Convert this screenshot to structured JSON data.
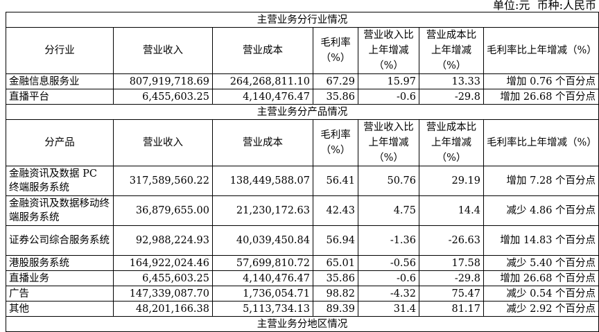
{
  "unit_note": "单位:元  币种:人民币",
  "industry": {
    "title": "主营业务分行业情况",
    "headers": [
      "分行业",
      "营业收入",
      "营业成本",
      "毛利率（%）",
      "营业收入比上年增减（%）",
      "营业成本比上年增减（%）",
      "毛利率比上年增减（%）"
    ],
    "rows": [
      [
        "金融信息服务业",
        "807,919,718.69",
        "264,268,811.10",
        "67.29",
        "15.97",
        "13.33",
        "增加 0.76 个百分点"
      ],
      [
        "直播平台",
        "6,455,603.25",
        "4,140,476.47",
        "35.86",
        "-0.6",
        "-29.8",
        "增加 26.68 个百分点"
      ]
    ]
  },
  "product": {
    "title": "主营业务分产品情况",
    "headers": [
      "分产品",
      "营业收入",
      "营业成本",
      "毛利率（%）",
      "营业收入比上年增减（%）",
      "营业成本比上年增减（%）",
      "毛利率比上年增减（%）"
    ],
    "rows": [
      [
        "金融资讯及数据 PC 终端服务系统",
        "317,589,560.22",
        "138,449,588.07",
        "56.41",
        "50.76",
        "29.19",
        "增加 7.28 个百分点"
      ],
      [
        "金融资讯及数据移动终端服务系统",
        "36,879,655.00",
        "21,230,172.63",
        "42.43",
        "4.75",
        "14.4",
        "减少 4.86 个百分点"
      ],
      [
        "证券公司综合服务系统",
        "92,988,224.93",
        "40,039,450.84",
        "56.94",
        "-1.36",
        "-26.63",
        "增加 14.83 个百分点"
      ],
      [
        "港股服务系统",
        "164,922,024.46",
        "57,699,810.72",
        "65.01",
        "-0.56",
        "17.58",
        "减少 5.40 个百分点"
      ],
      [
        "直播业务",
        "6,455,603.25",
        "4,140,476.47",
        "35.86",
        "-0.6",
        "-29.8",
        "增加 26.68 个百分点"
      ],
      [
        "广告",
        "147,339,087.70",
        "1,736,054.71",
        "98.82",
        "-4.32",
        "75.47",
        "减少 0.54 个百分点"
      ],
      [
        "其他",
        "48,201,166.38",
        "5,113,734.13",
        "89.39",
        "31.4",
        "81.17",
        "减少 2.92 个百分点"
      ]
    ]
  },
  "region": {
    "title": "主营业务分地区情况"
  }
}
